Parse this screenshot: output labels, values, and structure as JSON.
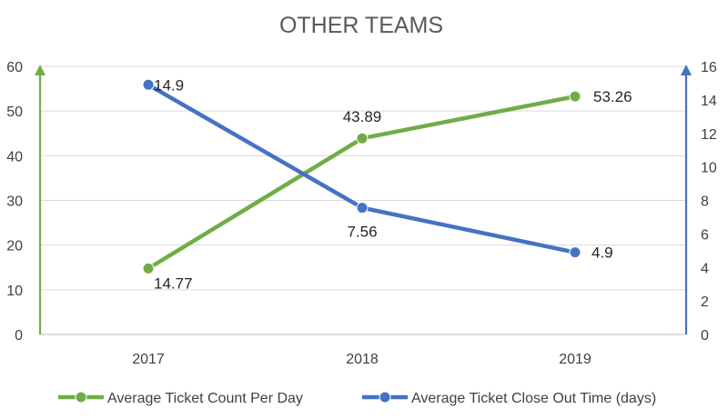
{
  "chart_data": {
    "type": "line",
    "title": "OTHER TEAMS",
    "categories": [
      "2017",
      "2018",
      "2019"
    ],
    "y_left": {
      "ylim": [
        0,
        60
      ],
      "ticks": [
        0,
        10,
        20,
        30,
        40,
        50,
        60
      ]
    },
    "y_right": {
      "ylim": [
        0,
        16
      ],
      "ticks": [
        0,
        2,
        4,
        6,
        8,
        10,
        12,
        14,
        16
      ]
    },
    "grid": true,
    "legend_position": "bottom",
    "series": [
      {
        "name": "Average Ticket Count Per Day",
        "axis": "left",
        "color": "#70ad47",
        "values": [
          14.77,
          43.89,
          53.26
        ],
        "labels": [
          "14.77",
          "43.89",
          "53.26"
        ]
      },
      {
        "name": "Average Ticket Close Out Time (days)",
        "axis": "right",
        "color": "#4472c4",
        "values": [
          14.9,
          7.56,
          4.9
        ],
        "labels": [
          "14.9",
          "7.56",
          "4.9"
        ]
      }
    ]
  }
}
